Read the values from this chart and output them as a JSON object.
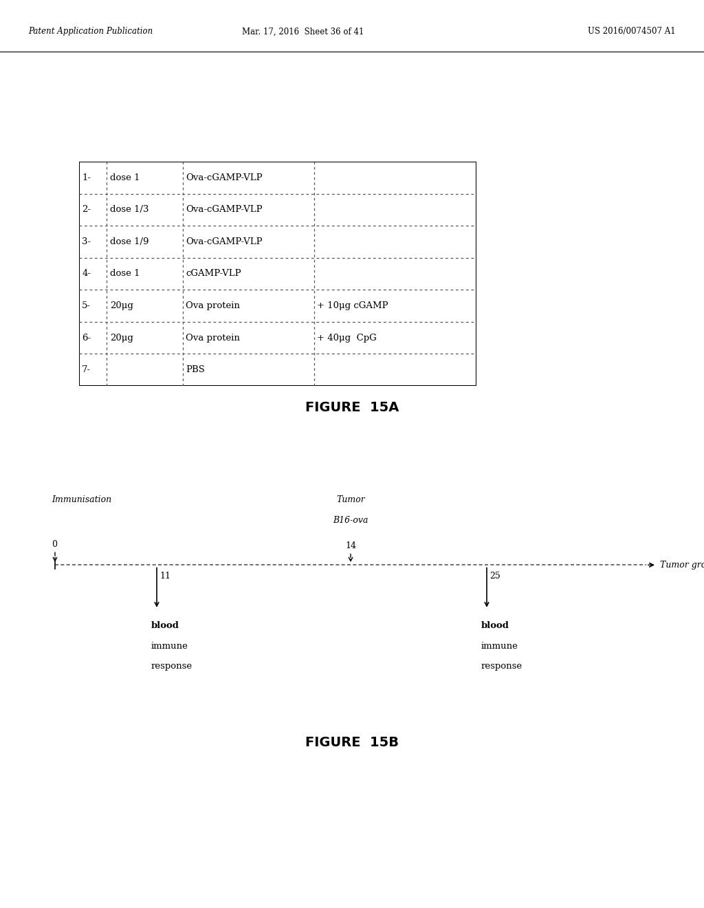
{
  "header_left": "Patent Application Publication",
  "header_center": "Mar. 17, 2016  Sheet 36 of 41",
  "header_right": "US 2016/0074507 A1",
  "figure_15a_title": "FIGURE  15A",
  "figure_15b_title": "FIGURE  15B",
  "table_rows": [
    [
      "1-",
      "dose 1",
      "Ova-cGAMP-VLP",
      ""
    ],
    [
      "2-",
      "dose 1/3",
      "Ova-cGAMP-VLP",
      ""
    ],
    [
      "3-",
      "dose 1/9",
      "Ova-cGAMP-VLP",
      ""
    ],
    [
      "4-",
      "dose 1",
      "cGAMP-VLP",
      ""
    ],
    [
      "5-",
      "20μg",
      "Ova protein",
      "+ 10μg cGAMP"
    ],
    [
      "6-",
      "20μg",
      "Ova protein",
      "+ 40μg  CpG"
    ],
    [
      "7-",
      "",
      "PBS",
      ""
    ]
  ],
  "bg_color": "#ffffff",
  "text_color": "#000000",
  "border_color": "#000000"
}
